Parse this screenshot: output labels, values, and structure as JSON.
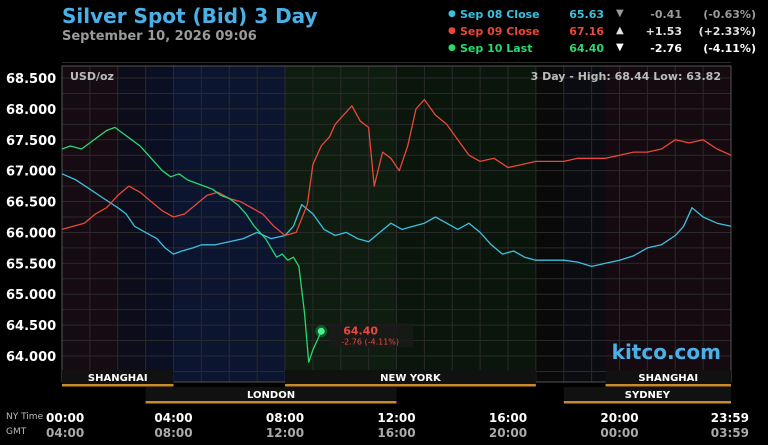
{
  "header": {
    "title": "Silver Spot (Bid) 3 Day",
    "subtitle": "September 10, 2026 09:06"
  },
  "legend": [
    {
      "label": "Sep 08 Close",
      "price": "65.63",
      "arrow": "▼",
      "change": "-0.41",
      "pct": "(-0.63%)",
      "color": "#3cc0e0",
      "text_color": "#3cc0e0",
      "value_color": "#9a9a9a"
    },
    {
      "label": "Sep 09 Close",
      "price": "67.16",
      "arrow": "▲",
      "change": "+1.53",
      "pct": "(+2.33%)",
      "color": "#e8483a",
      "text_color": "#e8483a",
      "value_color": "#e0e0e0"
    },
    {
      "label": "Sep 10 Last",
      "price": "64.40",
      "arrow": "▼",
      "change": "-2.76",
      "pct": "(-4.11%)",
      "color": "#28d870",
      "text_color": "#28d870",
      "value_color": "#ffffff"
    }
  ],
  "unit_label": "USD/oz",
  "range_label": "3 Day - High: 68.44  Low: 63.82",
  "watermark": "kitco.com",
  "last_price_label": {
    "price": "64.40",
    "change": "-2.76 (-4.11%)"
  },
  "sessions": {
    "row1": [
      {
        "name": "SHANGHAI",
        "start": 0,
        "end": 4
      },
      {
        "name": "NEW YORK",
        "start": 8,
        "end": 17
      },
      {
        "name": "SHANGHAI",
        "start": 19.5,
        "end": 24
      }
    ],
    "row2": [
      {
        "name": "LONDON",
        "start": 3,
        "end": 12
      },
      {
        "name": "SYDNEY",
        "start": 18,
        "end": 24
      }
    ]
  },
  "time_axis": {
    "ny_label": "NY Time",
    "gmt_label": "GMT",
    "ny_ticks": [
      "00:00",
      "04:00",
      "08:00",
      "12:00",
      "16:00",
      "20:00",
      "23:59"
    ],
    "gmt_ticks": [
      "04:00",
      "08:00",
      "12:00",
      "16:00",
      "20:00",
      "00:00",
      "03:59"
    ]
  },
  "chart_data": {
    "type": "line",
    "title": "Silver Spot (Bid) 3 Day",
    "ylabel": "USD/oz",
    "xlabel": "NY Time",
    "ylim": [
      63.55,
      68.75
    ],
    "xlim": [
      0,
      24
    ],
    "y_ticks": [
      "68.500",
      "68.000",
      "67.500",
      "67.000",
      "66.500",
      "66.000",
      "65.500",
      "65.000",
      "64.500",
      "64.000"
    ],
    "grid": true,
    "legend_position": "top-right",
    "series": [
      {
        "name": "Sep 08 Close",
        "color": "#3cc0e0",
        "x": [
          0,
          0.5,
          1,
          1.5,
          2,
          2.3,
          2.6,
          3,
          3.4,
          3.7,
          4,
          4.3,
          4.7,
          5,
          5.5,
          6,
          6.5,
          7,
          7.5,
          8,
          8.3,
          8.6,
          9,
          9.4,
          9.8,
          10.2,
          10.6,
          11,
          11.4,
          11.8,
          12.2,
          12.6,
          13,
          13.4,
          13.8,
          14.2,
          14.6,
          15,
          15.4,
          15.8,
          16.2,
          16.6,
          17,
          17.5,
          18,
          18.5,
          19,
          19.5,
          20,
          20.5,
          21,
          21.5,
          22,
          22.3,
          22.6,
          23,
          23.5,
          24
        ],
        "values": [
          66.95,
          66.85,
          66.7,
          66.55,
          66.4,
          66.3,
          66.1,
          66.0,
          65.9,
          65.75,
          65.65,
          65.7,
          65.75,
          65.8,
          65.8,
          65.85,
          65.9,
          66.0,
          65.9,
          65.95,
          66.1,
          66.45,
          66.3,
          66.05,
          65.95,
          66.0,
          65.9,
          65.85,
          66.0,
          66.15,
          66.05,
          66.1,
          66.15,
          66.25,
          66.15,
          66.05,
          66.15,
          66.0,
          65.8,
          65.65,
          65.7,
          65.6,
          65.55,
          65.55,
          65.55,
          65.52,
          65.45,
          65.5,
          65.55,
          65.62,
          65.75,
          65.8,
          65.95,
          66.1,
          66.4,
          66.25,
          66.15,
          66.1
        ]
      },
      {
        "name": "Sep 09 Close",
        "color": "#e8483a",
        "x": [
          0,
          0.4,
          0.8,
          1.2,
          1.6,
          2.0,
          2.4,
          2.8,
          3.2,
          3.6,
          4.0,
          4.4,
          4.8,
          5.2,
          5.6,
          6.0,
          6.4,
          6.8,
          7.2,
          7.6,
          8.0,
          8.4,
          8.8,
          9.0,
          9.3,
          9.6,
          9.8,
          10.1,
          10.4,
          10.7,
          11.0,
          11.2,
          11.5,
          11.8,
          12.1,
          12.4,
          12.7,
          13.0,
          13.4,
          13.8,
          14.2,
          14.6,
          15.0,
          15.5,
          16.0,
          16.5,
          17.0,
          17.5,
          18.0,
          18.5,
          19.0,
          19.5,
          20.0,
          20.5,
          21.0,
          21.5,
          22.0,
          22.5,
          23.0,
          23.5,
          24.0
        ],
        "values": [
          66.05,
          66.1,
          66.15,
          66.3,
          66.4,
          66.6,
          66.75,
          66.65,
          66.5,
          66.35,
          66.25,
          66.3,
          66.45,
          66.6,
          66.65,
          66.55,
          66.5,
          66.4,
          66.3,
          66.1,
          65.95,
          66.0,
          66.45,
          67.1,
          67.4,
          67.55,
          67.75,
          67.9,
          68.05,
          67.8,
          67.7,
          66.75,
          67.3,
          67.2,
          67.0,
          67.4,
          68.0,
          68.15,
          67.9,
          67.75,
          67.5,
          67.25,
          67.15,
          67.2,
          67.05,
          67.1,
          67.15,
          67.15,
          67.15,
          67.2,
          67.2,
          67.2,
          67.25,
          67.3,
          67.3,
          67.35,
          67.5,
          67.45,
          67.5,
          67.35,
          67.25
        ]
      },
      {
        "name": "Sep 10 Last",
        "color": "#28d870",
        "x": [
          0,
          0.3,
          0.7,
          1.0,
          1.3,
          1.6,
          1.9,
          2.2,
          2.5,
          2.8,
          3.0,
          3.3,
          3.6,
          3.9,
          4.2,
          4.5,
          4.8,
          5.1,
          5.4,
          5.7,
          6.0,
          6.3,
          6.6,
          6.9,
          7.1,
          7.3,
          7.5,
          7.7,
          7.9,
          8.1,
          8.3,
          8.5,
          8.7,
          8.85,
          9.0,
          9.15,
          9.3
        ],
        "values": [
          67.35,
          67.4,
          67.35,
          67.45,
          67.55,
          67.65,
          67.7,
          67.6,
          67.5,
          67.4,
          67.3,
          67.15,
          67.0,
          66.9,
          66.95,
          66.85,
          66.8,
          66.75,
          66.7,
          66.6,
          66.55,
          66.45,
          66.3,
          66.1,
          66.0,
          65.9,
          65.75,
          65.6,
          65.65,
          65.55,
          65.6,
          65.45,
          64.7,
          63.9,
          64.1,
          64.25,
          64.4
        ]
      }
    ]
  }
}
